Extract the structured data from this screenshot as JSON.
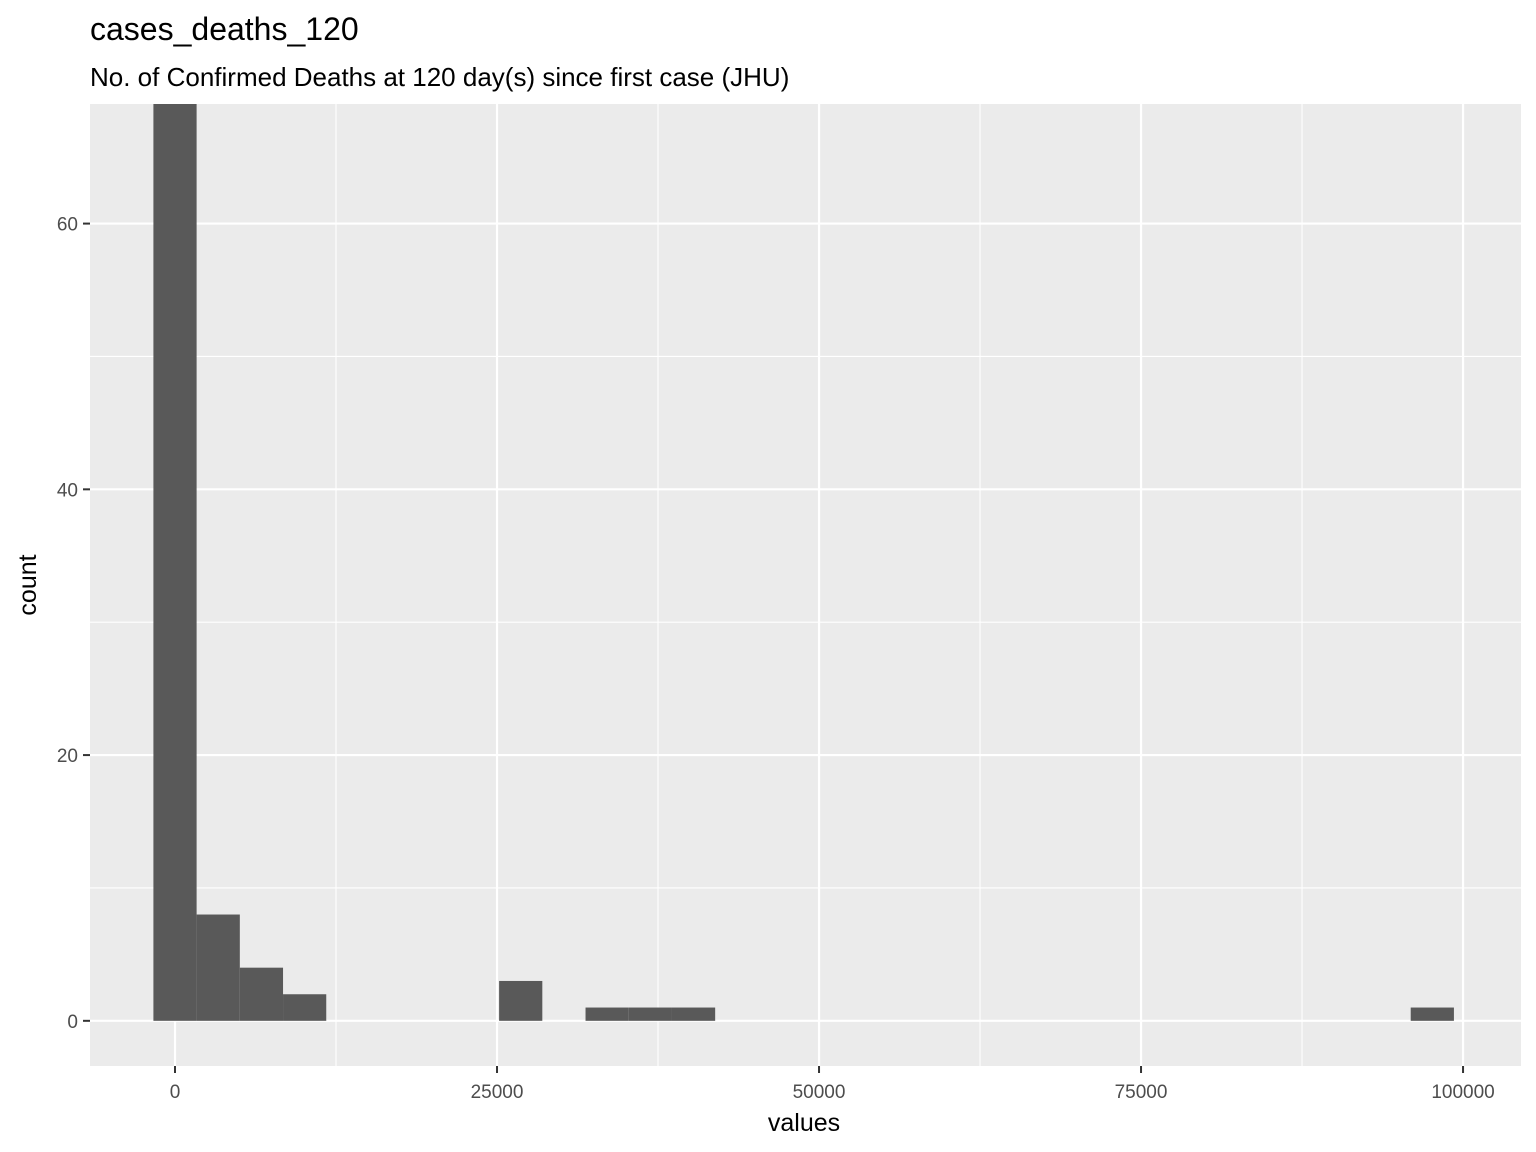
{
  "chart_data": {
    "type": "histogram",
    "title": "cases_deaths_120",
    "subtitle": "No. of Confirmed Deaths at 120 day(s) since first case (JHU)",
    "xlabel": "values",
    "ylabel": "count",
    "xlim": [
      -6600,
      104500
    ],
    "ylim": [
      -3.4,
      69.0
    ],
    "x_ticks": [
      0,
      25000,
      50000,
      75000,
      100000
    ],
    "x_tick_labels": [
      "0",
      "25000",
      "50000",
      "75000",
      "100000"
    ],
    "y_ticks": [
      0,
      20,
      40,
      60
    ],
    "y_tick_labels": [
      "0",
      "20",
      "40",
      "60"
    ],
    "bin_width": 3355,
    "bins": [
      {
        "start": -1677,
        "end": 1677,
        "count": 69
      },
      {
        "start": 1677,
        "end": 5032,
        "count": 8
      },
      {
        "start": 5032,
        "end": 8387,
        "count": 4
      },
      {
        "start": 8387,
        "end": 11742,
        "count": 2
      },
      {
        "start": 25162,
        "end": 28517,
        "count": 3
      },
      {
        "start": 31872,
        "end": 35227,
        "count": 1
      },
      {
        "start": 35227,
        "end": 38582,
        "count": 1
      },
      {
        "start": 38582,
        "end": 41937,
        "count": 1
      },
      {
        "start": 95937,
        "end": 99292,
        "count": 1
      }
    ],
    "grid": true,
    "colors": {
      "panel": "#ebebeb",
      "grid": "#ffffff",
      "bar": "#595959"
    }
  }
}
